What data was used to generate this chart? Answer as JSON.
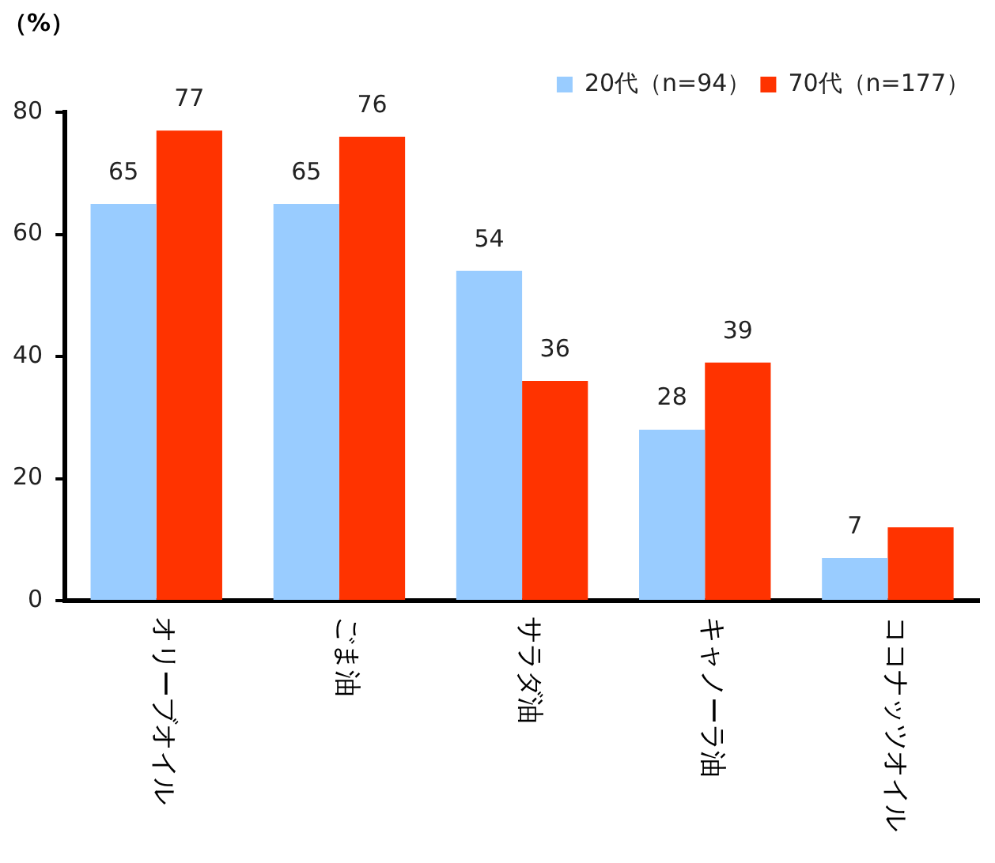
{
  "chart_data": {
    "type": "bar",
    "ylabel": "（%）",
    "categories": [
      "オリーブオイル",
      "ごま油",
      "サラダ油",
      "キャノーラ油",
      "ココナッツオイル"
    ],
    "series": [
      {
        "name": "20代（n=94）",
        "color": "#99ccff",
        "values": [
          65,
          65,
          54,
          28,
          7
        ],
        "value_labels": [
          "65",
          "65",
          "54",
          "28",
          "7"
        ]
      },
      {
        "name": "70代（n=177）",
        "color": "#ff3300",
        "values": [
          77,
          76,
          36,
          39,
          12
        ],
        "value_labels": [
          "77",
          "76",
          "36",
          "39",
          null
        ]
      }
    ],
    "ylim": [
      0,
      80
    ],
    "yticks": [
      0,
      20,
      40,
      60,
      80
    ],
    "grid": false,
    "legend": "top right"
  }
}
